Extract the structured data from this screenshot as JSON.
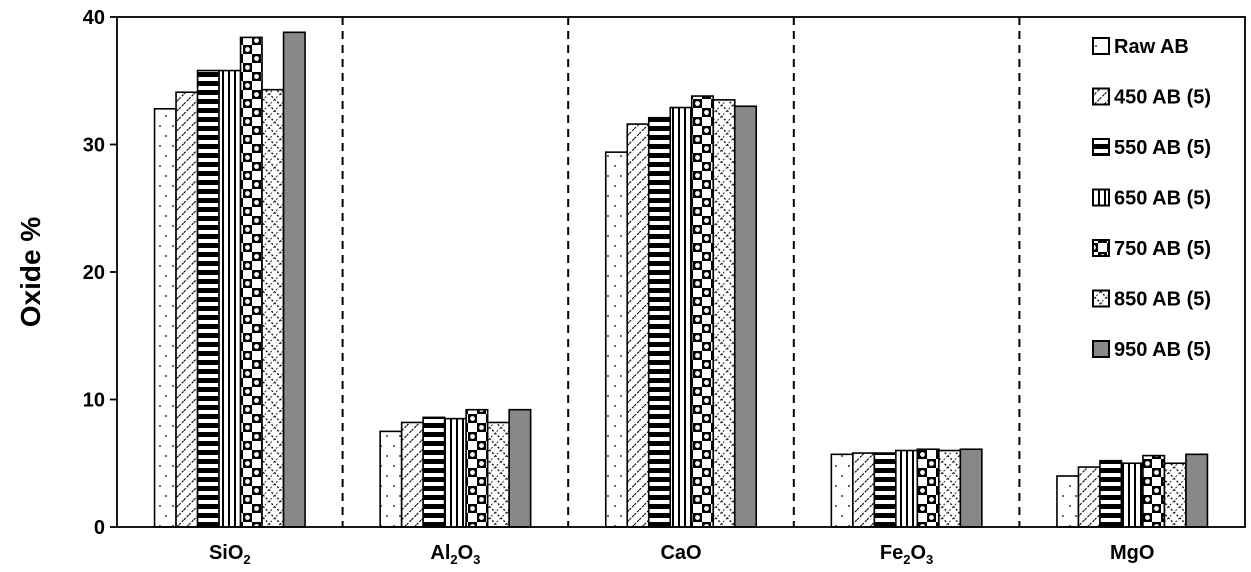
{
  "chart_data": {
    "type": "bar",
    "categories": [
      "SiO2",
      "Al2O3",
      "CaO",
      "Fe2O3",
      "MgO"
    ],
    "category_labels": [
      {
        "base": "SiO",
        "sub": "2",
        "tail": ""
      },
      {
        "base": "Al",
        "sub": "2",
        "tail": "O",
        "sub2": "3"
      },
      {
        "base": "CaO",
        "sub": "",
        "tail": ""
      },
      {
        "base": "Fe",
        "sub": "2",
        "tail": "O",
        "sub2": "3"
      },
      {
        "base": "MgO",
        "sub": "",
        "tail": ""
      }
    ],
    "ylabel": "Oxide %",
    "xlabel": "",
    "ylim": [
      0,
      40
    ],
    "yticks": [
      0,
      10,
      20,
      30,
      40
    ],
    "ytick_labels": [
      "0",
      "10",
      "20",
      "30",
      "40"
    ],
    "grid": false,
    "group_separators": "dashed vertical lines",
    "legend_position": "top-right",
    "series": [
      {
        "name": "Raw AB",
        "values": [
          32.8,
          7.5,
          29.4,
          5.7,
          4.0
        ],
        "pattern": "dots",
        "color": "#ffffff"
      },
      {
        "name": "450 AB (5)",
        "values": [
          34.1,
          8.2,
          31.6,
          5.8,
          4.7
        ],
        "pattern": "diagonal",
        "color": "#ffffff"
      },
      {
        "name": "550 AB (5)",
        "values": [
          35.8,
          8.6,
          32.1,
          5.8,
          5.2
        ],
        "pattern": "horizontal",
        "color": "#ffffff"
      },
      {
        "name": "650 AB (5)",
        "values": [
          35.8,
          8.5,
          32.9,
          6.0,
          5.0
        ],
        "pattern": "vertical",
        "color": "#ffffff"
      },
      {
        "name": "750 AB (5)",
        "values": [
          38.4,
          9.2,
          33.8,
          6.1,
          5.6
        ],
        "pattern": "checker",
        "color": "#ffffff"
      },
      {
        "name": "850 AB (5)",
        "values": [
          34.3,
          8.2,
          33.5,
          6.0,
          5.0
        ],
        "pattern": "diamond",
        "color": "#ffffff"
      },
      {
        "name": "950 AB (5)",
        "values": [
          38.8,
          9.2,
          33.0,
          6.1,
          5.7
        ],
        "pattern": "solid",
        "color": "#888888"
      }
    ]
  }
}
